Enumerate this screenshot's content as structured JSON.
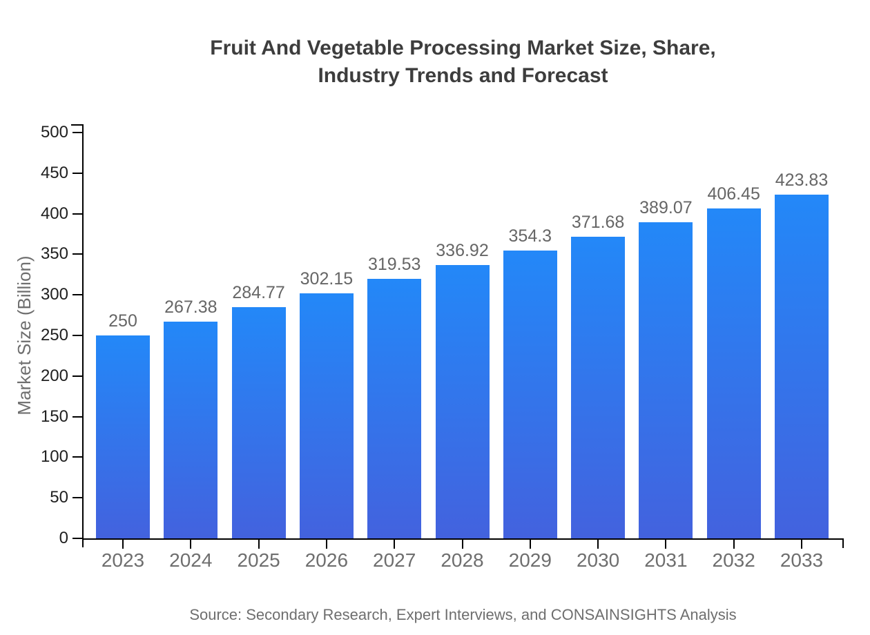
{
  "chart": {
    "title_lines": [
      "Fruit And Vegetable Processing Market Size, Share,",
      "Industry Trends and Forecast"
    ],
    "source": "Source: Secondary Research, Expert Interviews, and CONSAINSIGHTS Analysis"
  },
  "chart_data": {
    "type": "bar",
    "title": "Fruit And Vegetable Processing Market Size, Share, Industry Trends and Forecast",
    "categories": [
      "2023",
      "2024",
      "2025",
      "2026",
      "2027",
      "2028",
      "2029",
      "2030",
      "2031",
      "2032",
      "2033"
    ],
    "values": [
      250,
      267.38,
      284.77,
      302.15,
      319.53,
      336.92,
      354.3,
      371.68,
      389.07,
      406.45,
      423.83
    ],
    "value_labels": [
      "250",
      "267.38",
      "284.77",
      "302.15",
      "319.53",
      "336.92",
      "354.3",
      "371.68",
      "389.07",
      "406.45",
      "423.83"
    ],
    "xlabel": "",
    "ylabel": "Market Size (Billion)",
    "ylim": [
      0,
      500
    ],
    "ytick_step": 50,
    "grid": false,
    "legend_position": "none",
    "colors": {
      "bar_gradient_top": "#2388f8",
      "bar_gradient_bottom": "#4362de",
      "axis": "#000000",
      "ytick_label": "#1f1f1f",
      "xtick_label": "#6e6e6e",
      "value_label": "#666666",
      "title": "#3d3d3d",
      "muted_text": "#6e6e6e"
    }
  }
}
